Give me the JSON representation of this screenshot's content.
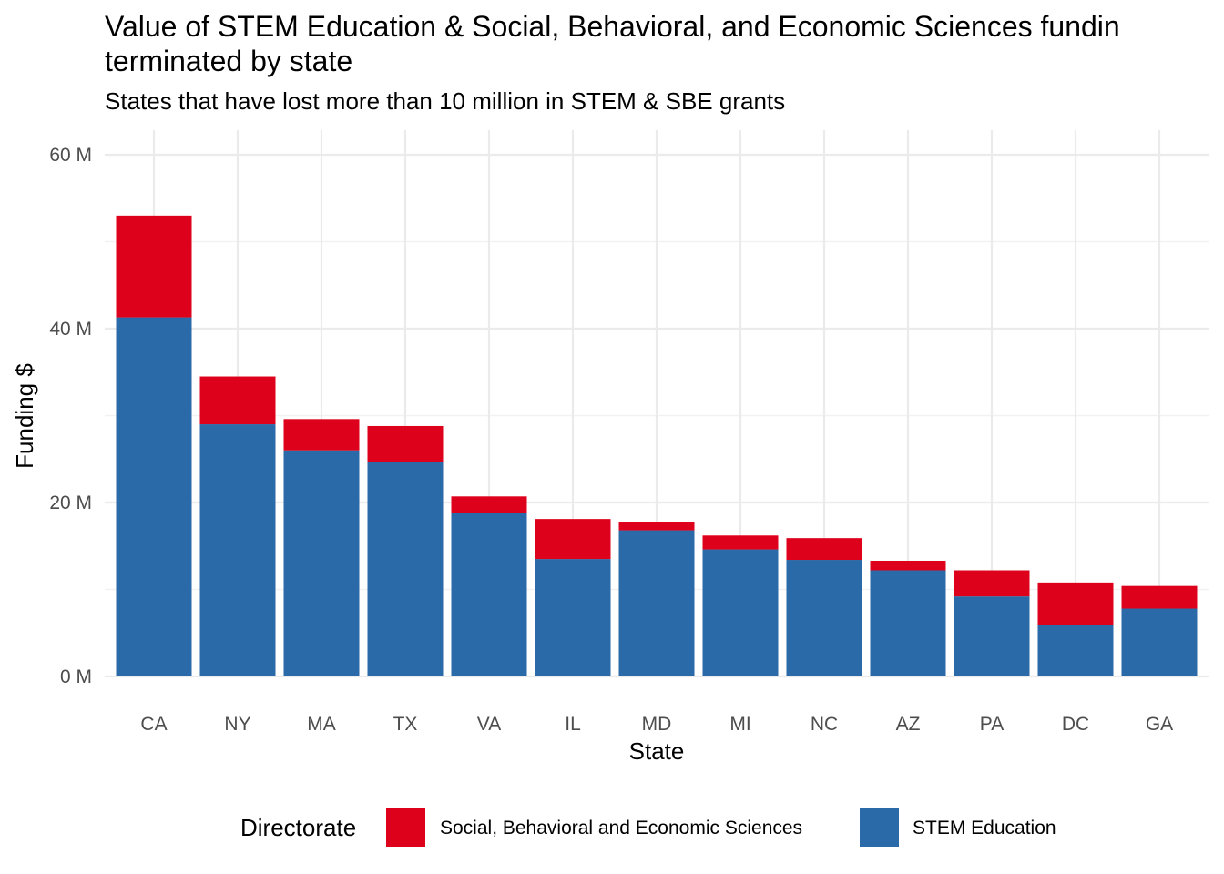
{
  "chart_data": {
    "type": "bar",
    "stacked": true,
    "title": "Value of STEM Education & Social, Behavioral, and Economic Sciences funding terminated by state",
    "title_line1": "Value of STEM Education & Social, Behavioral, and Economic Sciences fundin",
    "title_line2": "terminated by state",
    "subtitle": "States that have lost more than 10 million in STEM & SBE grants",
    "xlabel": "State",
    "ylabel": "Funding $",
    "ylim": [
      0,
      62000000
    ],
    "y_ticks": [
      0,
      20000000,
      40000000,
      60000000
    ],
    "y_tick_labels": [
      "0 M",
      "20 M",
      "40 M",
      "60 M"
    ],
    "grid": true,
    "legend_title": "Directorate",
    "legend_position": "bottom",
    "categories": [
      "CA",
      "NY",
      "MA",
      "TX",
      "VA",
      "IL",
      "MD",
      "MI",
      "NC",
      "AZ",
      "PA",
      "DC",
      "GA"
    ],
    "series": [
      {
        "name": "STEM Education",
        "color": "#2B6AA8",
        "values": [
          41300000,
          29000000,
          26000000,
          24700000,
          18800000,
          13500000,
          16800000,
          14600000,
          13400000,
          12200000,
          9200000,
          5900000,
          7800000
        ]
      },
      {
        "name": "Social, Behavioral and Economic Sciences",
        "color": "#DE011B",
        "values": [
          11700000,
          5500000,
          3600000,
          4100000,
          1900000,
          4600000,
          1000000,
          1600000,
          2500000,
          1100000,
          3000000,
          4900000,
          2600000
        ]
      }
    ],
    "legend_order": [
      "Social, Behavioral and Economic Sciences",
      "STEM Education"
    ]
  }
}
